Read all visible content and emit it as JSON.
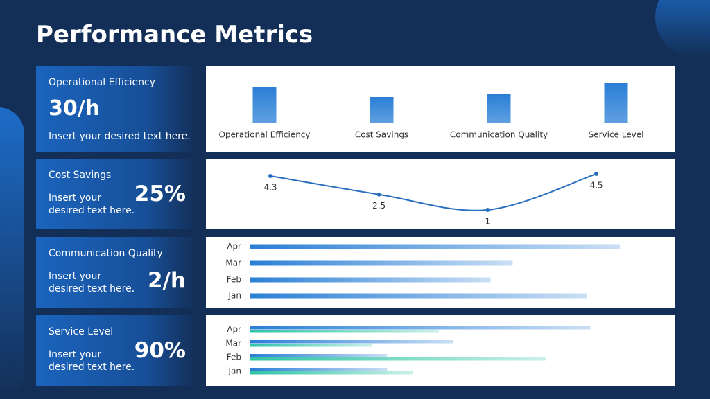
{
  "title": "Performance Metrics",
  "cards": [
    {
      "label": "Operational Efficiency",
      "value": "30/h",
      "text": "Insert your desired text here."
    },
    {
      "label": "Cost Savings",
      "value": "25%",
      "text": "Insert your desired text here."
    },
    {
      "label": "Communication Quality",
      "value": "2/h",
      "text": "Insert your desired text here."
    },
    {
      "label": "Service Level",
      "value": "90%",
      "text": "Insert your desired text here."
    }
  ],
  "chart_data": [
    {
      "type": "bar",
      "categories": [
        "Operational Efficiency",
        "Cost Savings",
        "Communication Quality",
        "Service Level"
      ],
      "values": [
        52,
        37,
        41,
        57
      ],
      "color": "#2a7fd6"
    },
    {
      "type": "line",
      "values": [
        4.3,
        2.5,
        1,
        4.5
      ],
      "color": "#2a6fbf"
    },
    {
      "type": "hbar",
      "categories": [
        "Apr",
        "Mar",
        "Feb",
        "Jan"
      ],
      "values": [
        100,
        71,
        65,
        91
      ],
      "color": "#2a7fd6"
    },
    {
      "type": "hbar",
      "categories": [
        "Apr",
        "Mar",
        "Feb",
        "Jan"
      ],
      "series": [
        {
          "color": "#2a7fd6",
          "values": [
            92,
            55,
            37,
            37
          ]
        },
        {
          "color": "#2ec4a6",
          "values": [
            51,
            33,
            80,
            44
          ]
        }
      ]
    }
  ]
}
